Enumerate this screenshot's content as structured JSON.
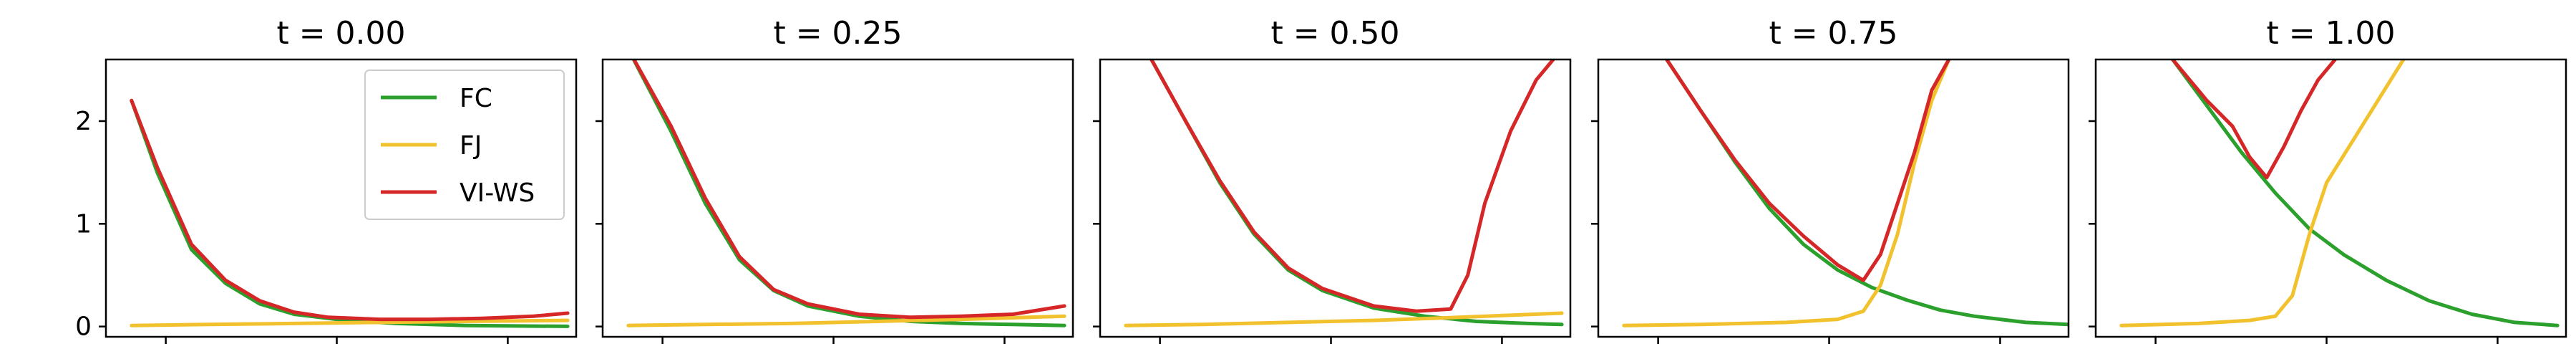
{
  "chart_data": {
    "type": "line",
    "panels": [
      {
        "title": "t = 0.00",
        "series": [
          {
            "name": "FC",
            "color": "#2ca02c",
            "x": [
              0.05,
              0.2,
              0.4,
              0.6,
              0.8,
              1.0,
              1.3,
              1.6,
              2.0,
              2.3,
              2.6
            ],
            "y": [
              2.2,
              1.5,
              0.75,
              0.42,
              0.22,
              0.12,
              0.06,
              0.03,
              0.01,
              0.005,
              0.002
            ]
          },
          {
            "name": "FJ",
            "color": "#f2c12e",
            "x": [
              0.05,
              0.5,
              1.0,
              1.5,
              2.0,
              2.6
            ],
            "y": [
              0.01,
              0.02,
              0.03,
              0.04,
              0.05,
              0.06
            ]
          },
          {
            "name": "VI-WS",
            "color": "#d62728",
            "x": [
              0.05,
              0.2,
              0.4,
              0.6,
              0.8,
              1.0,
              1.2,
              1.5,
              1.8,
              2.1,
              2.4,
              2.6
            ],
            "y": [
              2.2,
              1.55,
              0.8,
              0.45,
              0.25,
              0.14,
              0.09,
              0.07,
              0.07,
              0.08,
              0.1,
              0.13
            ]
          }
        ]
      },
      {
        "title": "t = 0.25",
        "series": [
          {
            "name": "FC",
            "color": "#2ca02c",
            "x": [
              0.05,
              0.3,
              0.5,
              0.7,
              0.9,
              1.1,
              1.4,
              1.7,
              2.0,
              2.3,
              2.6
            ],
            "y": [
              2.7,
              1.9,
              1.2,
              0.65,
              0.35,
              0.2,
              0.1,
              0.05,
              0.03,
              0.02,
              0.01
            ]
          },
          {
            "name": "FJ",
            "color": "#f2c12e",
            "x": [
              0.05,
              0.5,
              1.0,
              1.5,
              2.0,
              2.6
            ],
            "y": [
              0.01,
              0.02,
              0.03,
              0.05,
              0.07,
              0.1
            ]
          },
          {
            "name": "VI-WS",
            "color": "#d62728",
            "x": [
              0.05,
              0.3,
              0.5,
              0.7,
              0.9,
              1.1,
              1.4,
              1.7,
              2.0,
              2.3,
              2.6
            ],
            "y": [
              2.7,
              1.95,
              1.25,
              0.68,
              0.36,
              0.22,
              0.12,
              0.09,
              0.1,
              0.12,
              0.2
            ]
          }
        ]
      },
      {
        "title": "t = 0.50",
        "series": [
          {
            "name": "FC",
            "color": "#2ca02c",
            "x": [
              0.2,
              0.4,
              0.6,
              0.8,
              1.0,
              1.2,
              1.5,
              1.8,
              2.1,
              2.4,
              2.6
            ],
            "y": [
              2.6,
              2.0,
              1.4,
              0.9,
              0.55,
              0.35,
              0.18,
              0.1,
              0.05,
              0.03,
              0.02
            ]
          },
          {
            "name": "FJ",
            "color": "#f2c12e",
            "x": [
              0.05,
              0.5,
              1.0,
              1.5,
              2.0,
              2.6
            ],
            "y": [
              0.01,
              0.02,
              0.04,
              0.06,
              0.09,
              0.13
            ]
          },
          {
            "name": "VI-WS",
            "color": "#d62728",
            "x": [
              0.2,
              0.4,
              0.6,
              0.8,
              1.0,
              1.2,
              1.5,
              1.75,
              1.95,
              2.05,
              2.15,
              2.3,
              2.45,
              2.55
            ],
            "y": [
              2.6,
              2.0,
              1.42,
              0.92,
              0.57,
              0.37,
              0.2,
              0.15,
              0.17,
              0.5,
              1.2,
              1.9,
              2.4,
              2.6
            ]
          }
        ]
      },
      {
        "title": "t = 0.75",
        "series": [
          {
            "name": "FC",
            "color": "#2ca02c",
            "x": [
              0.3,
              0.5,
              0.7,
              0.9,
              1.1,
              1.3,
              1.5,
              1.7,
              1.9,
              2.1,
              2.4,
              2.65
            ],
            "y": [
              2.6,
              2.1,
              1.6,
              1.15,
              0.8,
              0.55,
              0.38,
              0.26,
              0.16,
              0.1,
              0.04,
              0.02
            ]
          },
          {
            "name": "FJ",
            "color": "#f2c12e",
            "x": [
              0.05,
              0.5,
              1.0,
              1.3,
              1.45,
              1.55,
              1.65,
              1.75,
              1.85,
              1.95
            ],
            "y": [
              0.01,
              0.02,
              0.04,
              0.07,
              0.15,
              0.4,
              0.9,
              1.6,
              2.2,
              2.6
            ]
          },
          {
            "name": "VI-WS",
            "color": "#d62728",
            "x": [
              0.3,
              0.5,
              0.7,
              0.9,
              1.1,
              1.3,
              1.45,
              1.55,
              1.65,
              1.75,
              1.85,
              1.95
            ],
            "y": [
              2.6,
              2.1,
              1.62,
              1.2,
              0.88,
              0.6,
              0.45,
              0.7,
              1.2,
              1.7,
              2.3,
              2.6
            ]
          }
        ]
      },
      {
        "title": "t = 1.00",
        "series": [
          {
            "name": "FC",
            "color": "#2ca02c",
            "x": [
              0.35,
              0.55,
              0.75,
              0.95,
              1.15,
              1.35,
              1.6,
              1.85,
              2.1,
              2.35,
              2.6
            ],
            "y": [
              2.6,
              2.15,
              1.7,
              1.3,
              0.95,
              0.7,
              0.45,
              0.25,
              0.12,
              0.04,
              0.01
            ]
          },
          {
            "name": "FJ",
            "color": "#f2c12e",
            "x": [
              0.05,
              0.5,
              0.8,
              0.95,
              1.05,
              1.15,
              1.25,
              1.4,
              1.55,
              1.7
            ],
            "y": [
              0.01,
              0.03,
              0.06,
              0.1,
              0.3,
              0.9,
              1.4,
              1.8,
              2.2,
              2.6
            ]
          },
          {
            "name": "VI-WS",
            "color": "#d62728",
            "x": [
              0.35,
              0.55,
              0.7,
              0.8,
              0.9,
              1.0,
              1.1,
              1.2,
              1.3
            ],
            "y": [
              2.6,
              2.2,
              1.95,
              1.65,
              1.45,
              1.75,
              2.1,
              2.4,
              2.6
            ]
          }
        ]
      }
    ],
    "xlim": [
      -0.1,
      2.65
    ],
    "ylim": [
      -0.1,
      2.6
    ],
    "yticks": [
      "0",
      "1",
      "2"
    ],
    "xticks": [
      0.25,
      1.25,
      2.25
    ],
    "legend": {
      "location": "upper right",
      "panel": 0,
      "entries": [
        "FC",
        "FJ",
        "VI-WS"
      ]
    },
    "grid": false
  }
}
